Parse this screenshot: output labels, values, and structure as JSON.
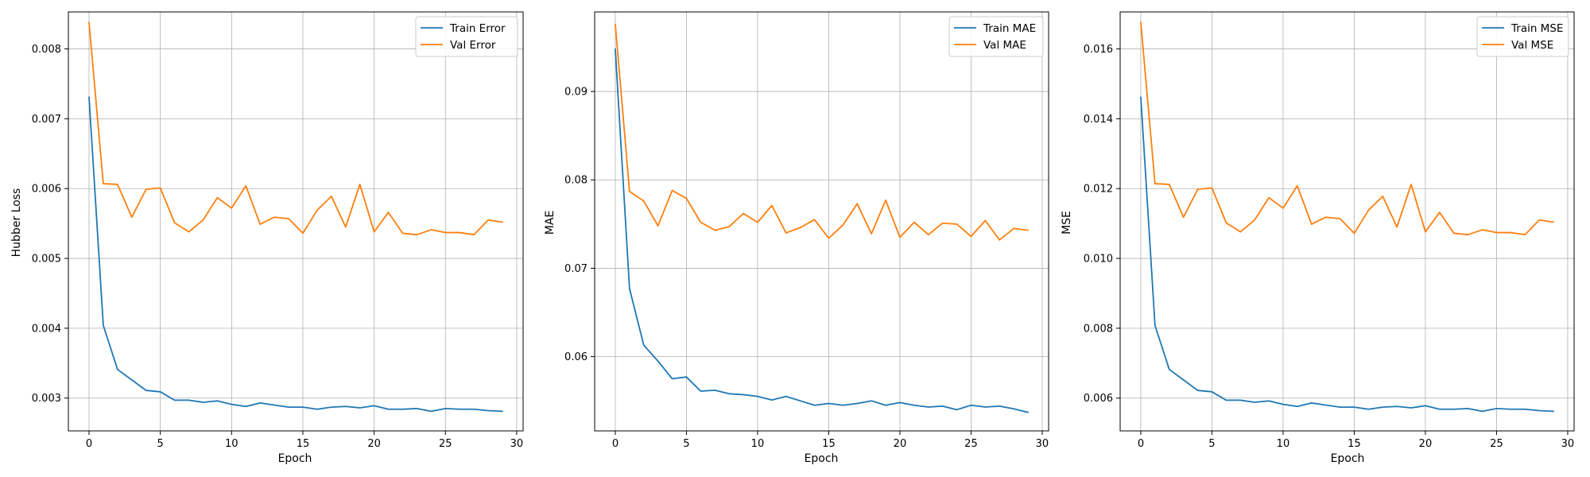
{
  "figure": {
    "background": "#ffffff",
    "grid": true,
    "line_colors": [
      "#1f77b4",
      "#ff7f0e"
    ]
  },
  "chart_data": [
    {
      "type": "line",
      "title": "",
      "xlabel": "Epoch",
      "ylabel": "Hubber Loss",
      "xlim": [
        -1.45,
        30.45
      ],
      "ylim": [
        0.00253,
        0.00853
      ],
      "xticks": [
        0,
        5,
        10,
        15,
        20,
        25,
        30
      ],
      "xtick_labels": [
        "0",
        "5",
        "10",
        "15",
        "20",
        "25",
        "30"
      ],
      "yticks": [
        0.003,
        0.004,
        0.005,
        0.006,
        0.007,
        0.008
      ],
      "ytick_labels": [
        "0.003",
        "0.004",
        "0.005",
        "0.006",
        "0.007",
        "0.008"
      ],
      "grid": true,
      "legend_position": "top-right",
      "x": [
        0,
        1,
        2,
        3,
        4,
        5,
        6,
        7,
        8,
        9,
        10,
        11,
        12,
        13,
        14,
        15,
        16,
        17,
        18,
        19,
        20,
        21,
        22,
        23,
        24,
        25,
        26,
        27,
        28,
        29
      ],
      "series": [
        {
          "name": "Train Error",
          "color": "#1f77b4",
          "values": [
            0.00731,
            0.00404,
            0.00341,
            0.00326,
            0.00311,
            0.00309,
            0.00297,
            0.00297,
            0.00294,
            0.00296,
            0.00291,
            0.00288,
            0.00293,
            0.0029,
            0.00287,
            0.00287,
            0.00284,
            0.00287,
            0.00288,
            0.00286,
            0.00289,
            0.00284,
            0.00284,
            0.00285,
            0.00281,
            0.00285,
            0.00284,
            0.00284,
            0.00282,
            0.00281
          ]
        },
        {
          "name": "Val Error",
          "color": "#ff7f0e",
          "values": [
            0.00838,
            0.00607,
            0.00606,
            0.00559,
            0.00599,
            0.00601,
            0.00551,
            0.00538,
            0.00555,
            0.00587,
            0.00572,
            0.00604,
            0.00549,
            0.00559,
            0.00557,
            0.00536,
            0.00569,
            0.00589,
            0.00545,
            0.00606,
            0.00538,
            0.00566,
            0.00536,
            0.00534,
            0.00541,
            0.00537,
            0.00537,
            0.00534,
            0.00555,
            0.00552
          ]
        }
      ]
    },
    {
      "type": "line",
      "title": "",
      "xlabel": "Epoch",
      "ylabel": "MAE",
      "xlim": [
        -1.45,
        30.45
      ],
      "ylim": [
        0.0516,
        0.099
      ],
      "xticks": [
        0,
        5,
        10,
        15,
        20,
        25,
        30
      ],
      "xtick_labels": [
        "0",
        "5",
        "10",
        "15",
        "20",
        "25",
        "30"
      ],
      "yticks": [
        0.06,
        0.07,
        0.08,
        0.09
      ],
      "ytick_labels": [
        "0.06",
        "0.07",
        "0.08",
        "0.09"
      ],
      "grid": true,
      "legend_position": "top-right",
      "x": [
        0,
        1,
        2,
        3,
        4,
        5,
        6,
        7,
        8,
        9,
        10,
        11,
        12,
        13,
        14,
        15,
        16,
        17,
        18,
        19,
        20,
        21,
        22,
        23,
        24,
        25,
        26,
        27,
        28,
        29
      ],
      "series": [
        {
          "name": "Train MAE",
          "color": "#1f77b4",
          "values": [
            0.0948,
            0.0677,
            0.0613,
            0.0595,
            0.0575,
            0.0577,
            0.0561,
            0.0562,
            0.0558,
            0.0557,
            0.0555,
            0.0551,
            0.0555,
            0.055,
            0.0545,
            0.0547,
            0.0545,
            0.0547,
            0.055,
            0.0545,
            0.0548,
            0.0545,
            0.0543,
            0.0544,
            0.054,
            0.0545,
            0.0543,
            0.0544,
            0.0541,
            0.0537
          ]
        },
        {
          "name": "Val MAE",
          "color": "#ff7f0e",
          "values": [
            0.0976,
            0.0787,
            0.0776,
            0.0748,
            0.0788,
            0.0779,
            0.0752,
            0.0743,
            0.0747,
            0.0762,
            0.0752,
            0.0771,
            0.074,
            0.0746,
            0.0755,
            0.0734,
            0.0749,
            0.0773,
            0.0739,
            0.0777,
            0.0735,
            0.0752,
            0.0738,
            0.0751,
            0.075,
            0.0736,
            0.0754,
            0.0732,
            0.0745,
            0.0743
          ]
        }
      ]
    },
    {
      "type": "line",
      "title": "",
      "xlabel": "Epoch",
      "ylabel": "MSE",
      "xlim": [
        -1.45,
        30.45
      ],
      "ylim": [
        0.00506,
        0.01706
      ],
      "xticks": [
        0,
        5,
        10,
        15,
        20,
        25,
        30
      ],
      "xtick_labels": [
        "0",
        "5",
        "10",
        "15",
        "20",
        "25",
        "30"
      ],
      "yticks": [
        0.006,
        0.008,
        0.01,
        0.012,
        0.014,
        0.016
      ],
      "ytick_labels": [
        "0.006",
        "0.008",
        "0.010",
        "0.012",
        "0.014",
        "0.016"
      ],
      "grid": true,
      "legend_position": "top-right",
      "x": [
        0,
        1,
        2,
        3,
        4,
        5,
        6,
        7,
        8,
        9,
        10,
        11,
        12,
        13,
        14,
        15,
        16,
        17,
        18,
        19,
        20,
        21,
        22,
        23,
        24,
        25,
        26,
        27,
        28,
        29
      ],
      "series": [
        {
          "name": "Train MSE",
          "color": "#1f77b4",
          "values": [
            0.01462,
            0.00808,
            0.00682,
            0.00652,
            0.00622,
            0.00618,
            0.00594,
            0.00594,
            0.00588,
            0.00592,
            0.00582,
            0.00576,
            0.00586,
            0.0058,
            0.00574,
            0.00574,
            0.00568,
            0.00574,
            0.00576,
            0.00572,
            0.00578,
            0.00568,
            0.00568,
            0.0057,
            0.00562,
            0.0057,
            0.00568,
            0.00568,
            0.00564,
            0.00562
          ]
        },
        {
          "name": "Val MSE",
          "color": "#ff7f0e",
          "values": [
            0.01676,
            0.01214,
            0.01212,
            0.01118,
            0.01198,
            0.01202,
            0.01102,
            0.01076,
            0.0111,
            0.01174,
            0.01144,
            0.01208,
            0.01098,
            0.01118,
            0.01114,
            0.01072,
            0.01138,
            0.01178,
            0.0109,
            0.01212,
            0.01076,
            0.01132,
            0.01072,
            0.01068,
            0.01082,
            0.01074,
            0.01074,
            0.01068,
            0.0111,
            0.01104
          ]
        }
      ]
    }
  ]
}
